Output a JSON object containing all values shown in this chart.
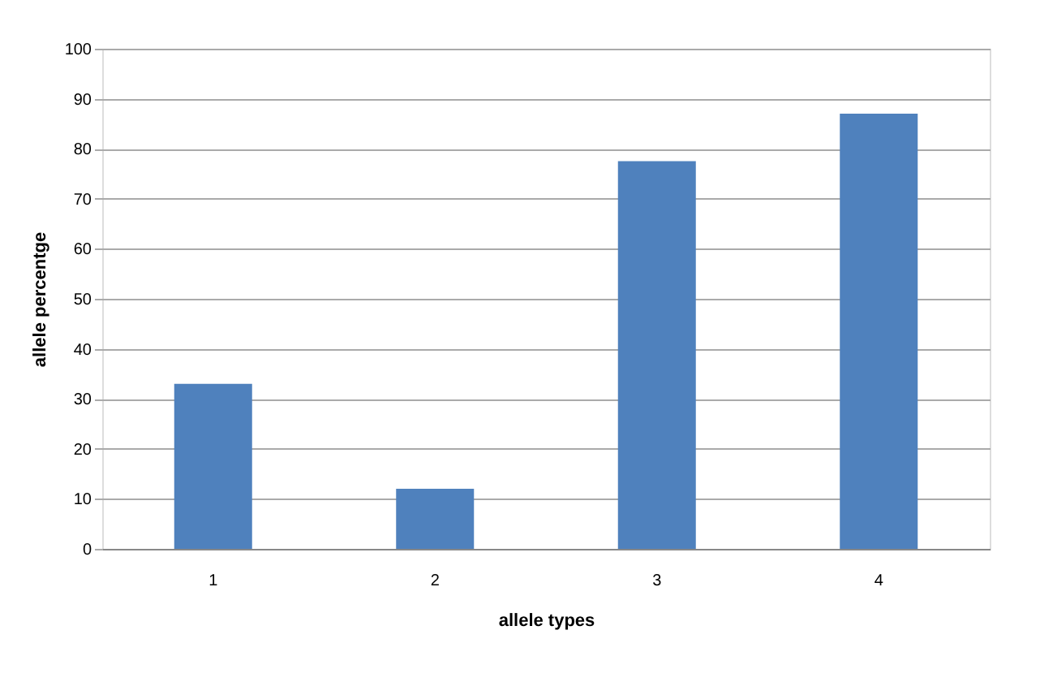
{
  "chart_data": {
    "type": "bar",
    "xlabel": "allele types",
    "ylabel": "allele percentge",
    "categories": [
      "1",
      "2",
      "3",
      "4"
    ],
    "values": [
      33,
      12,
      77.5,
      87
    ],
    "color": "#4f81bd",
    "ylim": [
      0,
      100
    ],
    "yticks": [
      0,
      10,
      20,
      30,
      40,
      50,
      60,
      70,
      80,
      90,
      100
    ],
    "grid": "y"
  }
}
